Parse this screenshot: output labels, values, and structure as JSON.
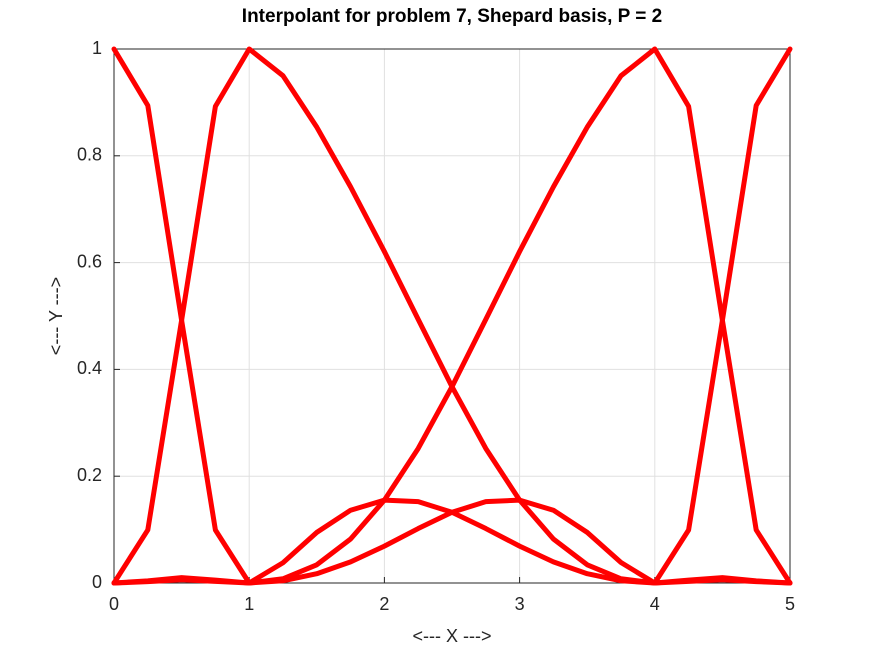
{
  "chart_data": {
    "type": "line",
    "title": "Interpolant for problem 7, Shepard basis, P = 2",
    "xlabel": "<--- X --->",
    "ylabel": "<--- Y --->",
    "x": [
      0,
      0.25,
      0.5,
      0.75,
      1,
      1.25,
      1.5,
      1.75,
      2,
      2.25,
      2.5,
      2.75,
      3,
      3.25,
      3.5,
      3.75,
      4,
      4.25,
      4.5,
      4.75,
      5
    ],
    "series": [
      {
        "color": "#ff0000",
        "values": [
          1,
          0.8942,
          0.4919,
          0.0992,
          0,
          0.038,
          0.0948,
          0.1363,
          0.1552,
          0.1524,
          0.1324,
          0.102,
          0.069,
          0.0395,
          0.0174,
          0.0042,
          0,
          0.0031,
          0.0061,
          0.0025,
          0
        ]
      },
      {
        "color": "#ff0000",
        "values": [
          0,
          0.0994,
          0.4919,
          0.8925,
          1,
          0.9499,
          0.8536,
          0.7418,
          0.6207,
          0.4937,
          0.3676,
          0.2519,
          0.1552,
          0.0824,
          0.0341,
          0.0079,
          0,
          0.0053,
          0.01,
          0.004,
          0
        ]
      },
      {
        "color": "#ff0000",
        "values": [
          0,
          0.004,
          0.01,
          0.0053,
          0,
          0.0079,
          0.0341,
          0.0824,
          0.1552,
          0.2519,
          0.3676,
          0.4937,
          0.6207,
          0.7418,
          0.8536,
          0.9499,
          1,
          0.8925,
          0.4919,
          0.0994,
          0
        ]
      },
      {
        "color": "#ff0000",
        "values": [
          0,
          0.0025,
          0.0061,
          0.0031,
          0,
          0.0042,
          0.0174,
          0.0395,
          0.069,
          0.102,
          0.1324,
          0.1524,
          0.1552,
          0.1363,
          0.0948,
          0.0383,
          0,
          0.0992,
          0.4919,
          0.8942,
          1
        ]
      }
    ],
    "xlim": [
      0,
      5
    ],
    "xticks": [
      0,
      1,
      2,
      3,
      4,
      5
    ],
    "ylim": [
      0,
      1
    ],
    "yticks": [
      0,
      0.2,
      0.4,
      0.6,
      0.8,
      1
    ],
    "grid": true
  }
}
